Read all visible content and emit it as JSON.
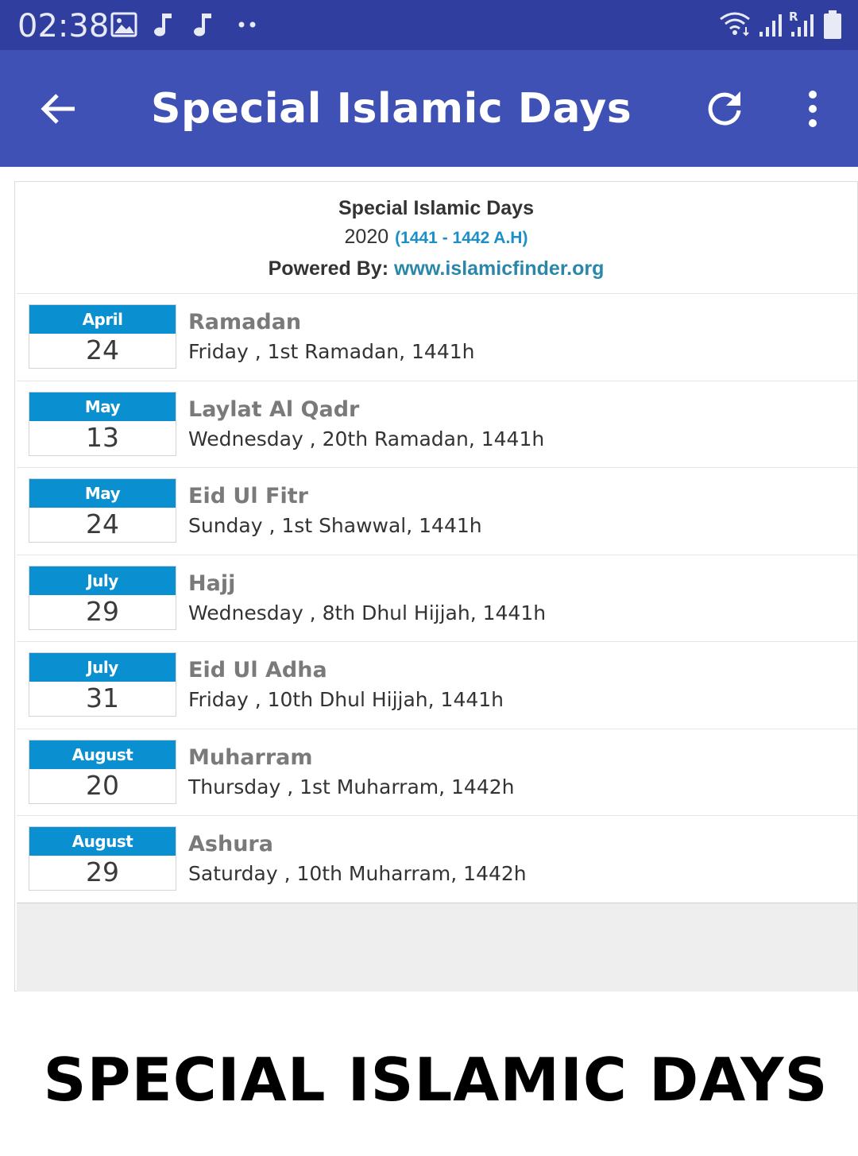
{
  "status_bar": {
    "time": "02:38",
    "left_icons": [
      "image-icon",
      "music-note-icon",
      "music-note-icon",
      "more-dots-icon"
    ],
    "right_icons": [
      "wifi-icon",
      "signal-icon",
      "signal-roaming-icon",
      "battery-icon"
    ]
  },
  "app_bar": {
    "title": "Special Islamic Days",
    "back_icon": "arrow-left-icon",
    "refresh_icon": "refresh-icon",
    "menu_icon": "more-vertical-icon",
    "color": "#3f51b5",
    "status_color": "#303f9f"
  },
  "header": {
    "title": "Special Islamic Days",
    "year": "2020",
    "hijri_range": "(1441 - 1442 A.H)",
    "powered_label": "Powered By:",
    "powered_link": "www.islamicfinder.org"
  },
  "events": [
    {
      "month": "April",
      "day": "24",
      "name": "Ramadan",
      "date": "Friday , 1st Ramadan, 1441h"
    },
    {
      "month": "May",
      "day": "13",
      "name": "Laylat Al Qadr",
      "date": "Wednesday , 20th Ramadan, 1441h"
    },
    {
      "month": "May",
      "day": "24",
      "name": "Eid Ul Fitr",
      "date": "Sunday , 1st Shawwal, 1441h"
    },
    {
      "month": "July",
      "day": "29",
      "name": "Hajj",
      "date": "Wednesday , 8th Dhul Hijjah, 1441h"
    },
    {
      "month": "July",
      "day": "31",
      "name": "Eid Ul Adha",
      "date": "Friday , 10th Dhul Hijjah, 1441h"
    },
    {
      "month": "August",
      "day": "20",
      "name": "Muharram",
      "date": "Thursday , 1st Muharram, 1442h"
    },
    {
      "month": "August",
      "day": "29",
      "name": "Ashura",
      "date": "Saturday , 10th Muharram, 1442h"
    }
  ],
  "caption": "SPECIAL ISLAMIC DAYS",
  "colors": {
    "month_badge": "#0a8fd1",
    "link": "#2a87a8",
    "hijri": "#1a8fc9"
  }
}
